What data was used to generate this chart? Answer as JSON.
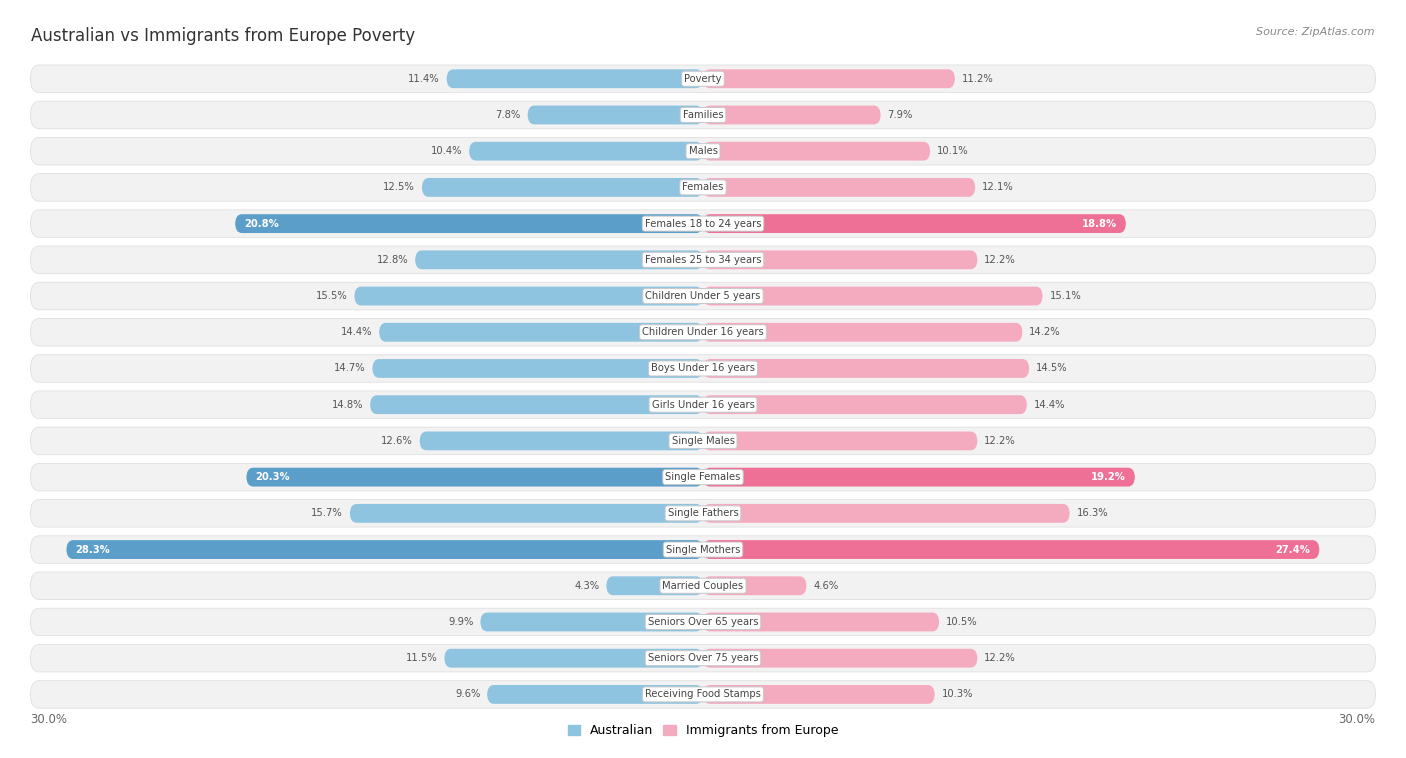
{
  "title": "Australian vs Immigrants from Europe Poverty",
  "source": "Source: ZipAtlas.com",
  "categories": [
    "Poverty",
    "Families",
    "Males",
    "Females",
    "Females 18 to 24 years",
    "Females 25 to 34 years",
    "Children Under 5 years",
    "Children Under 16 years",
    "Boys Under 16 years",
    "Girls Under 16 years",
    "Single Males",
    "Single Females",
    "Single Fathers",
    "Single Mothers",
    "Married Couples",
    "Seniors Over 65 years",
    "Seniors Over 75 years",
    "Receiving Food Stamps"
  ],
  "australian": [
    11.4,
    7.8,
    10.4,
    12.5,
    20.8,
    12.8,
    15.5,
    14.4,
    14.7,
    14.8,
    12.6,
    20.3,
    15.7,
    28.3,
    4.3,
    9.9,
    11.5,
    9.6
  ],
  "immigrants": [
    11.2,
    7.9,
    10.1,
    12.1,
    18.8,
    12.2,
    15.1,
    14.2,
    14.5,
    14.4,
    12.2,
    19.2,
    16.3,
    27.4,
    4.6,
    10.5,
    12.2,
    10.3
  ],
  "australian_color": "#8FC4E0",
  "immigrant_color": "#F4AABF",
  "australian_color_high": "#5B9EC9",
  "immigrant_color_high": "#EE7096",
  "row_bg_color": "#F2F2F2",
  "row_border_color": "#E0E0E0",
  "max_value": 30.0,
  "axis_label": "30.0%",
  "high_threshold": 18.0
}
